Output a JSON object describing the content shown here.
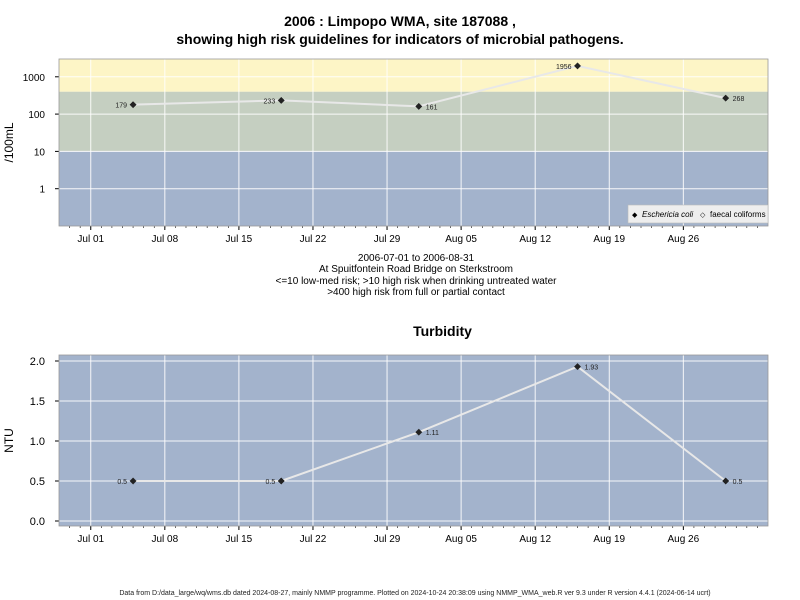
{
  "footer": "Data from D:/data_large/wq/wms.db dated 2024-08-27, mainly NMMP programme. Plotted on 2024-10-24 20:38:09 using NMMP_WMA_web.R ver 9.3 under R version 4.4.1 (2024-06-14 ucrt)",
  "chart_data": [
    {
      "type": "line",
      "title": "2006 : Limpopo WMA, site 187088 ,",
      "subtitle": "showing high risk guidelines for indicators of microbial pathogens.",
      "ylabel": "/100mL",
      "yscale": "log",
      "ylim": [
        0.1,
        3000
      ],
      "xlim": [
        "2006-06-28",
        "2006-09-03"
      ],
      "yticks": [
        1,
        10,
        100,
        1000
      ],
      "ytick_labels": [
        "1",
        "10",
        "100",
        "1000"
      ],
      "xticks": [
        "2006-07-01",
        "2006-07-08",
        "2006-07-15",
        "2006-07-22",
        "2006-07-29",
        "2006-08-05",
        "2006-08-12",
        "2006-08-19",
        "2006-08-26"
      ],
      "xtick_labels": [
        "Jul 01",
        "Jul 08",
        "Jul 15",
        "Jul 22",
        "Jul 29",
        "Aug 05",
        "Aug 12",
        "Aug 19",
        "Aug 26"
      ],
      "grid": true,
      "risk_bands": [
        {
          "from": 0.1,
          "to": 10,
          "color": "#a3b3cc"
        },
        {
          "from": 10,
          "to": 400,
          "color": "#c5cfc1"
        },
        {
          "from": 400,
          "to": 3000,
          "color": "#fdf5c6"
        }
      ],
      "series": [
        {
          "name": "Eschericia coli",
          "marker": "diamond-filled",
          "x": [
            "2006-07-05",
            "2006-07-19",
            "2006-08-01",
            "2006-08-16",
            "2006-08-30"
          ],
          "y": [
            179,
            233,
            161,
            1956,
            268
          ],
          "labels": [
            "179",
            "233",
            "161",
            "1956",
            "268"
          ]
        }
      ],
      "legend": {
        "position": "bottom-right",
        "entries": [
          {
            "label": "Eschericia coli",
            "italic": true,
            "symbol": "◆"
          },
          {
            "label": "faecal coliforms",
            "italic": false,
            "symbol": "◇"
          }
        ]
      },
      "caption": [
        "2006-07-01 to 2006-08-31",
        "At Spuitfontein Road Bridge on Sterkstroom",
        "<=10 low-med risk; >10 high risk when drinking untreated water",
        ">400 high risk from full or partial contact"
      ]
    },
    {
      "type": "line",
      "title": "Turbidity",
      "ylabel": "NTU",
      "ylim": [
        -0.05,
        2.0
      ],
      "xlim": [
        "2006-06-28",
        "2006-09-03"
      ],
      "yticks": [
        0.0,
        0.5,
        1.0,
        1.5,
        2.0
      ],
      "ytick_labels": [
        "0.0",
        "0.5",
        "1.0",
        "1.5",
        "2.0"
      ],
      "xticks": [
        "2006-07-01",
        "2006-07-08",
        "2006-07-15",
        "2006-07-22",
        "2006-07-29",
        "2006-08-05",
        "2006-08-12",
        "2006-08-19",
        "2006-08-26"
      ],
      "xtick_labels": [
        "Jul 01",
        "Jul 08",
        "Jul 15",
        "Jul 22",
        "Jul 29",
        "Aug 05",
        "Aug 12",
        "Aug 19",
        "Aug 26"
      ],
      "grid": true,
      "background": "#a3b3cc",
      "series": [
        {
          "x": [
            "2006-07-05",
            "2006-07-19",
            "2006-08-01",
            "2006-08-16",
            "2006-08-30"
          ],
          "y": [
            0.5,
            0.5,
            1.11,
            1.93,
            0.5
          ],
          "labels": [
            "0.5",
            "0.5",
            "1.11",
            "1.93",
            "0.5"
          ]
        }
      ]
    }
  ]
}
